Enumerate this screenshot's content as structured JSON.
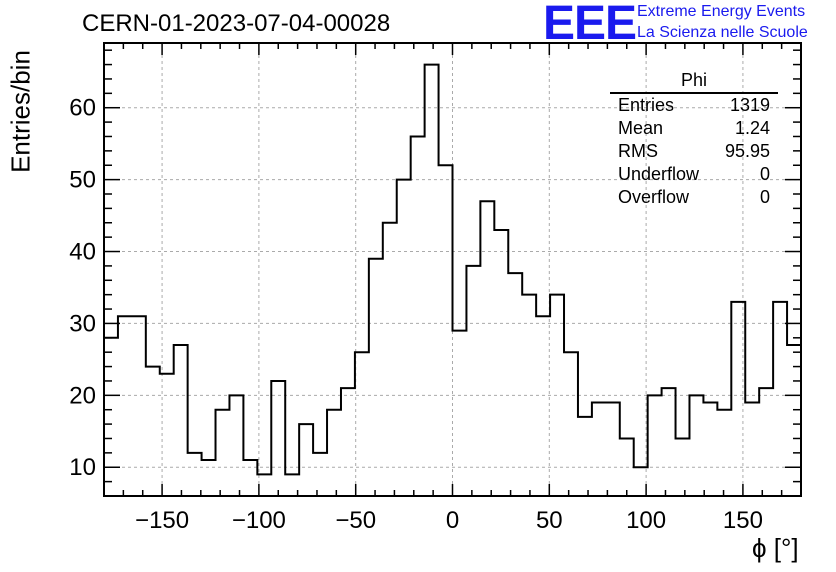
{
  "title": "CERN-01-2023-07-04-00028",
  "logo": {
    "mark": "EEE",
    "line1": "Extreme Energy Events",
    "line2": "La Scienza nelle Scuole",
    "color": "#1a1aee"
  },
  "stats": {
    "title": "Phi",
    "rows": [
      {
        "label": "Entries",
        "value": "1319"
      },
      {
        "label": "Mean",
        "value": "1.24"
      },
      {
        "label": "RMS",
        "value": "95.95"
      },
      {
        "label": "Underflow",
        "value": "0"
      },
      {
        "label": "Overflow",
        "value": "0"
      }
    ]
  },
  "chart_data": {
    "type": "histogram",
    "title": "CERN-01-2023-07-04-00028",
    "xlabel": "ϕ [°]",
    "ylabel": "Entries/bin",
    "xlim": [
      -180,
      180
    ],
    "ylim": [
      6,
      69
    ],
    "bin_width": 7.2,
    "grid": true,
    "xticks": [
      -150,
      -100,
      -50,
      0,
      50,
      100,
      150
    ],
    "yticks": [
      10,
      20,
      30,
      40,
      50,
      60
    ],
    "values": [
      28,
      31,
      31,
      24,
      23,
      27,
      12,
      11,
      18,
      20,
      11,
      9,
      22,
      9,
      16,
      12,
      18,
      21,
      26,
      39,
      44,
      50,
      56,
      66,
      52,
      29,
      38,
      47,
      43,
      37,
      34,
      31,
      34,
      26,
      17,
      19,
      19,
      14,
      10,
      20,
      21,
      14,
      20,
      19,
      18,
      33,
      19,
      21,
      33,
      27
    ]
  }
}
